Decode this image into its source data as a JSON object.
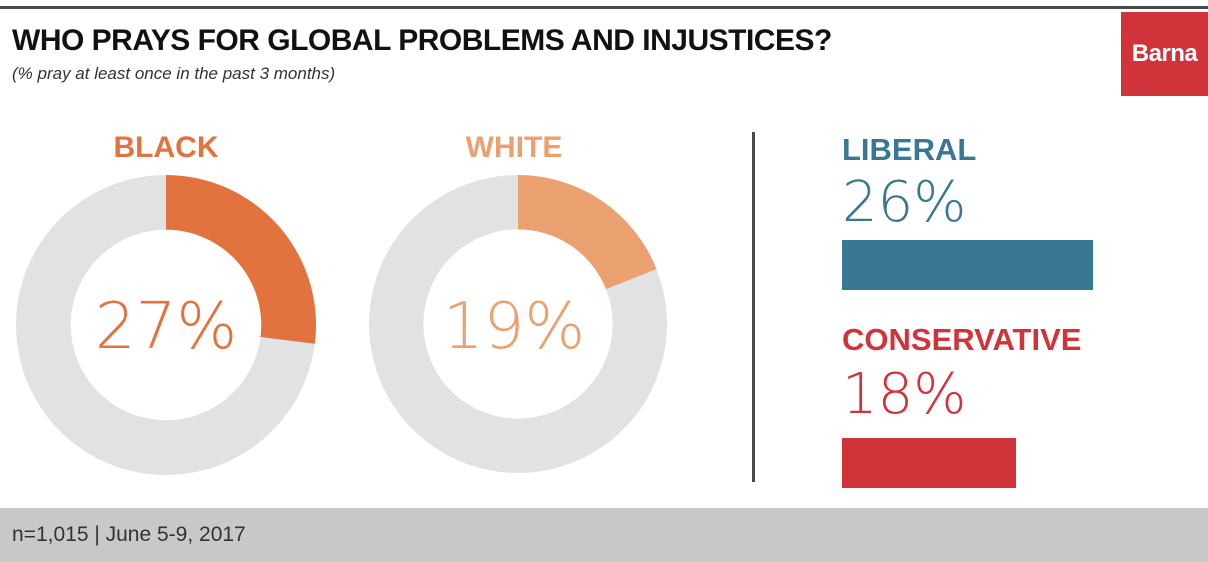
{
  "header": {
    "title": "WHO PRAYS FOR GLOBAL PROBLEMS AND INJUSTICES?",
    "subtitle": "(% pray at least once in the past 3 months)"
  },
  "logo": {
    "text": "Barna",
    "color": "#d0343a"
  },
  "footer": {
    "note": "n=1,015 | June 5-9, 2017"
  },
  "colors": {
    "track": "#e1e2e4",
    "divider": "#4a4a4a"
  },
  "chart_data": [
    {
      "type": "pie",
      "variant": "donut",
      "title": "BLACK",
      "value": 27,
      "value_label": "27%",
      "color": "#e2733f",
      "remainder_color": "#e1e2e4"
    },
    {
      "type": "pie",
      "variant": "donut",
      "title": "WHITE",
      "value": 19,
      "value_label": "19%",
      "color": "#eaa06f",
      "remainder_color": "#e1e2e4"
    },
    {
      "type": "bar",
      "orientation": "horizontal",
      "xlim": [
        0,
        26
      ],
      "series": [
        {
          "name": "LIBERAL",
          "value": 26,
          "value_label": "26%",
          "color": "#387893"
        },
        {
          "name": "CONSERVATIVE",
          "value": 18,
          "value_label": "18%",
          "color": "#d0343a"
        }
      ]
    }
  ]
}
